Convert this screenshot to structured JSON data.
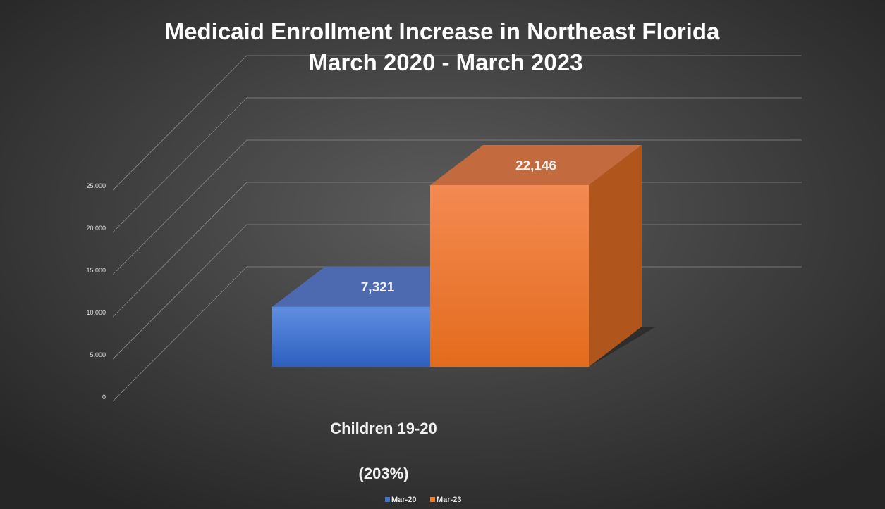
{
  "chart_data": {
    "type": "bar",
    "title": [
      "Medicaid Enrollment Increase in Northeast Florida",
      "March 2020 - March 2023"
    ],
    "categories": [
      "Children 19-20"
    ],
    "category_note": "(203%)",
    "series": [
      {
        "name": "Mar-20",
        "values": [
          7321
        ],
        "data_labels": [
          "7,321"
        ],
        "color": "#4472c4"
      },
      {
        "name": "Mar-23",
        "values": [
          22146
        ],
        "data_labels": [
          "22,146"
        ],
        "color": "#ed7d31"
      }
    ],
    "ylim": [
      0,
      25000
    ],
    "y_ticks": [
      {
        "value": 0,
        "label": "0"
      },
      {
        "value": 5000,
        "label": "5,000"
      },
      {
        "value": 10000,
        "label": "10,000"
      },
      {
        "value": 15000,
        "label": "15,000"
      },
      {
        "value": 20000,
        "label": "20,000"
      },
      {
        "value": 25000,
        "label": "25,000"
      }
    ],
    "grid": true,
    "legend_position": "bottom",
    "style": "3d-column",
    "background": "dark-gray"
  }
}
